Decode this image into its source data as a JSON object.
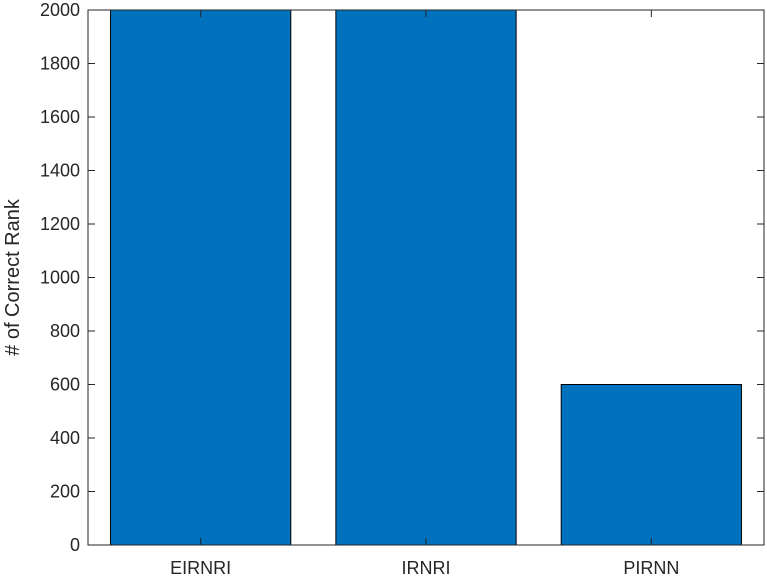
{
  "chart_data": {
    "type": "bar",
    "title": "",
    "xlabel": "",
    "ylabel": "# of Correct Rank",
    "categories": [
      "EIRNRI",
      "IRNRI",
      "PIRNN"
    ],
    "values": [
      2000,
      2000,
      600
    ],
    "ylim": [
      0,
      2000
    ],
    "xlim": [
      0.5,
      3.5
    ],
    "yticks": [
      0,
      200,
      400,
      600,
      800,
      1000,
      1200,
      1400,
      1600,
      1800,
      2000
    ],
    "ytick_labels": [
      "0",
      "200",
      "400",
      "600",
      "800",
      "1000",
      "1200",
      "1400",
      "1600",
      "1800",
      "2000"
    ],
    "grid": false,
    "bar_color": "#0072BD",
    "edge_color": "#000000",
    "axis_color": "#262626"
  }
}
